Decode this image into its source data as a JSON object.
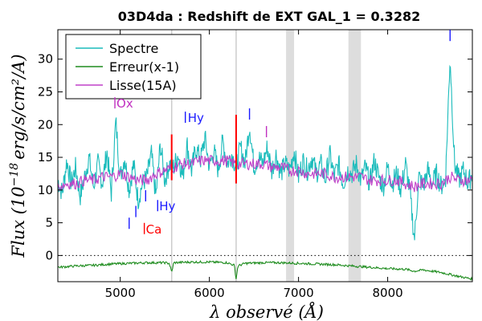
{
  "chart_data": {
    "type": "line",
    "title": "03D4da : Redshift de EXT GAL_1 = 0.3282",
    "xlabel": "λ observé (Å)",
    "ylabel": "Flux (10^-18 erg/s/cm²/A)",
    "ylabel_parts": {
      "prefix": "Flux (10",
      "exp": "−18",
      "suffix": "erg/s/cm²/A)"
    },
    "xlim": [
      4300,
      8950
    ],
    "ylim": [
      -4,
      34.5
    ],
    "x_ticks": [
      5000,
      6000,
      7000,
      8000
    ],
    "x_tick_labels": [
      "5000",
      "6000",
      "7000",
      "8000"
    ],
    "y_ticks": [
      0,
      5,
      10,
      15,
      20,
      25,
      30
    ],
    "y_tick_labels": [
      "0",
      "5",
      "10",
      "15",
      "20",
      "25",
      "30"
    ],
    "zero_line": {
      "y": 0,
      "style": "dotted"
    },
    "legend": {
      "placement": "top-left",
      "entries": [
        {
          "label": "Spectre",
          "color": "#1cbcbc"
        },
        {
          "label": "Erreur(x-1)",
          "color": "#1e8c1e"
        },
        {
          "label": "Lisse(15A)",
          "color": "#c040c8"
        }
      ]
    },
    "shaded_bands": [
      {
        "x0": 6860,
        "x1": 6950
      },
      {
        "x0": 7560,
        "x1": 7700
      }
    ],
    "vertical_lines": [
      5577,
      6300
    ],
    "series": [
      {
        "name": "Spectre",
        "color": "#1cbcbc",
        "x": [
          4300,
          4350,
          4400,
          4450,
          4500,
          4550,
          4600,
          4650,
          4700,
          4750,
          4800,
          4850,
          4900,
          4950,
          5000,
          5050,
          5100,
          5150,
          5200,
          5250,
          5300,
          5350,
          5400,
          5450,
          5500,
          5550,
          5600,
          5650,
          5700,
          5750,
          5800,
          5850,
          5900,
          5950,
          6000,
          6050,
          6100,
          6150,
          6200,
          6250,
          6300,
          6350,
          6400,
          6450,
          6500,
          6550,
          6600,
          6650,
          6700,
          6750,
          6800,
          6850,
          6900,
          6950,
          7000,
          7050,
          7100,
          7150,
          7200,
          7250,
          7300,
          7350,
          7400,
          7450,
          7500,
          7550,
          7600,
          7650,
          7700,
          7750,
          7800,
          7850,
          7900,
          7950,
          8000,
          8050,
          8100,
          8150,
          8200,
          8250,
          8300,
          8350,
          8400,
          8450,
          8500,
          8550,
          8600,
          8650,
          8700,
          8750,
          8800,
          8850,
          8900,
          8950
        ],
        "y": [
          11.5,
          9.5,
          14.5,
          11,
          13.5,
          9,
          12,
          15,
          10.5,
          14,
          11,
          16,
          9.5,
          20.5,
          12,
          15,
          10,
          14,
          8.5,
          11,
          12,
          15.5,
          9,
          17,
          11.5,
          14,
          13.5,
          15.5,
          12,
          17,
          13,
          16.5,
          14.5,
          18,
          13.5,
          16,
          13,
          17.5,
          14,
          15.5,
          13.5,
          16.5,
          14,
          20,
          13.5,
          15,
          14,
          16.5,
          13,
          15.5,
          12.5,
          14,
          13,
          16,
          12,
          14.5,
          13,
          15,
          12.5,
          14,
          11.5,
          15.5,
          12,
          14,
          11,
          13,
          12.5,
          14,
          11.5,
          13.5,
          11,
          14.5,
          12,
          10.5,
          13.5,
          11,
          12.5,
          10,
          14,
          9.5,
          2.5,
          12,
          10.5,
          13,
          11,
          12.5,
          10.5,
          12,
          30.5,
          14,
          11.5,
          13,
          11,
          12.5
        ]
      },
      {
        "name": "Erreur(x-1)",
        "color": "#1e8c1e",
        "x": [
          4300,
          4500,
          4700,
          4900,
          5100,
          5300,
          5500,
          5550,
          5577,
          5600,
          5800,
          6000,
          6200,
          6280,
          6300,
          6320,
          6400,
          6600,
          6800,
          7000,
          7200,
          7400,
          7600,
          7800,
          8000,
          8200,
          8300,
          8400,
          8600,
          8800,
          8950
        ],
        "y": [
          -1.8,
          -1.6,
          -1.5,
          -1.3,
          -1.2,
          -1.1,
          -1.1,
          -1.2,
          -2.6,
          -1.1,
          -1.0,
          -1.0,
          -1.1,
          -1.5,
          -3.6,
          -1.6,
          -1.2,
          -1.1,
          -1.1,
          -1.2,
          -1.3,
          -1.4,
          -1.6,
          -1.8,
          -2.0,
          -2.1,
          -2.4,
          -2.2,
          -2.6,
          -3.2,
          -3.6
        ]
      },
      {
        "name": "Lisse(15A)",
        "color": "#c040c8",
        "x": [
          4300,
          4400,
          4500,
          4600,
          4700,
          4800,
          4900,
          5000,
          5100,
          5200,
          5300,
          5400,
          5500,
          5600,
          5700,
          5800,
          5900,
          6000,
          6100,
          6200,
          6300,
          6400,
          6500,
          6600,
          6700,
          6800,
          6900,
          7000,
          7100,
          7200,
          7300,
          7400,
          7500,
          7600,
          7700,
          7800,
          7900,
          8000,
          8100,
          8200,
          8300,
          8400,
          8500,
          8600,
          8700,
          8800,
          8950
        ],
        "y": [
          10.5,
          11,
          11,
          11.5,
          11.5,
          12,
          12,
          12.5,
          12,
          11.5,
          11.5,
          12.5,
          13,
          13.5,
          14,
          14,
          14.5,
          14.5,
          14.5,
          14.5,
          14,
          14,
          14,
          14,
          13.5,
          13.5,
          13,
          13,
          12.5,
          12.5,
          12.5,
          12,
          12,
          12,
          12,
          11.5,
          11.5,
          11.5,
          11.5,
          11,
          10.5,
          11,
          11,
          11,
          12,
          11.5,
          11.5
        ]
      }
    ],
    "annotations": [
      {
        "text": "Ox",
        "x": 4940,
        "y": 23.2,
        "color": "#c030c0"
      },
      {
        "text": "Hy",
        "x": 5740,
        "y": 21.0,
        "color": "#1a1aff"
      },
      {
        "text": "Hy",
        "x": 5420,
        "y": 7.5,
        "color": "#1a1aff"
      },
      {
        "text": "Ca",
        "x": 5270,
        "y": 4.0,
        "color": "#ff0000"
      },
      {
        "text": "",
        "x": 4940,
        "y": 23.2,
        "color": "#c030c0",
        "marker": "bar"
      },
      {
        "text": "",
        "x": 5730,
        "y": 21.0,
        "color": "#1a1aff",
        "marker": "bar"
      },
      {
        "text": "",
        "x": 5420,
        "y": 7.5,
        "color": "#1a1aff",
        "marker": "bar"
      },
      {
        "text": "",
        "x": 5270,
        "y": 4.0,
        "color": "#ff0000",
        "marker": "bar"
      },
      {
        "text": "",
        "x": 5100,
        "y": 4.8,
        "color": "#1a1aff",
        "marker": "bar"
      },
      {
        "text": "",
        "x": 5175,
        "y": 6.6,
        "color": "#1a1aff",
        "marker": "bar"
      },
      {
        "text": "",
        "x": 5285,
        "y": 9.0,
        "color": "#1a1aff",
        "marker": "bar"
      },
      {
        "text": "",
        "x": 6450,
        "y": 21.5,
        "color": "#1a1aff",
        "marker": "bar"
      },
      {
        "text": "",
        "x": 6640,
        "y": 18.8,
        "color": "#c030c0",
        "marker": "bar"
      },
      {
        "text": "",
        "x": 8700,
        "y": 33.5,
        "color": "#1a1aff",
        "marker": "bar"
      }
    ],
    "red_spikes": [
      {
        "x": 5577,
        "y0": 11.5,
        "y1": 18.5
      },
      {
        "x": 6300,
        "y0": 11.0,
        "y1": 21.5
      }
    ]
  }
}
